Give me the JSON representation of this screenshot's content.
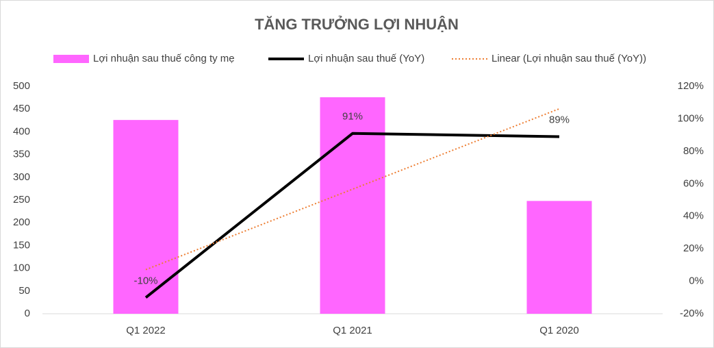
{
  "chart_data": {
    "type": "combo",
    "title": "TĂNG TRƯỞNG LỢI NHUẬN",
    "categories": [
      "Q1 2022",
      "Q1 2021",
      "Q1 2020"
    ],
    "series": [
      {
        "name": "Lợi nhuận sau thuế công ty mẹ",
        "type": "bar",
        "color": "#ff66ff",
        "values": [
          426,
          476,
          248
        ]
      },
      {
        "name": "Lợi nhuận sau thuế (YoY)",
        "type": "line",
        "axis": "y2",
        "color": "#000000",
        "values": [
          -10,
          91,
          89
        ],
        "value_labels": [
          "-10%",
          "91%",
          "89%"
        ]
      },
      {
        "name": "Linear (Lợi nhuận sau thuế (YoY))",
        "type": "line",
        "axis": "y2",
        "dash": "dotted",
        "color": "#ed7d31",
        "values": [
          7.17,
          56.67,
          106.17
        ]
      }
    ],
    "ylim": [
      0,
      500
    ],
    "yticks": [
      0,
      50,
      100,
      150,
      200,
      250,
      300,
      350,
      400,
      450,
      500
    ],
    "y2lim": [
      -20,
      120
    ],
    "y2ticks": [
      {
        "value": -20,
        "label": "-20%"
      },
      {
        "value": 0,
        "label": "0%"
      },
      {
        "value": 20,
        "label": "20%"
      },
      {
        "value": 40,
        "label": "40%"
      },
      {
        "value": 60,
        "label": "60%"
      },
      {
        "value": 80,
        "label": "80%"
      },
      {
        "value": 100,
        "label": "100%"
      },
      {
        "value": 120,
        "label": "120%"
      }
    ],
    "grid": false,
    "legend": "top"
  }
}
